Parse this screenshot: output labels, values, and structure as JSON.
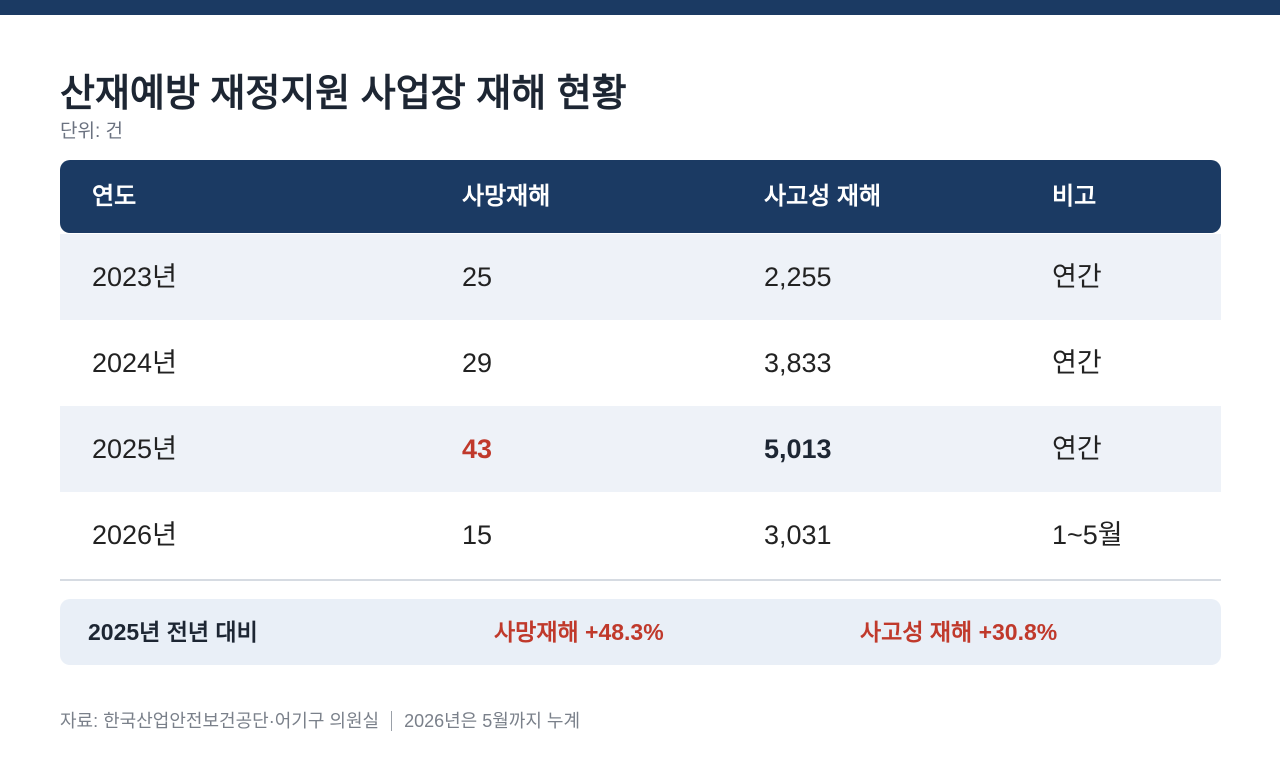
{
  "header": {
    "title": "산재예방 재정지원 사업장 재해 현황",
    "unit": "단위: 건"
  },
  "table": {
    "columns": [
      "연도",
      "사망재해",
      "사고성 재해",
      "비고"
    ],
    "rows": [
      [
        "2023년",
        "25",
        "2,255",
        "연간"
      ],
      [
        "2024년",
        "29",
        "3,833",
        "연간"
      ],
      [
        "2025년",
        "43",
        "5,013",
        "연간"
      ],
      [
        "2026년",
        "15",
        "3,031",
        "1~5월"
      ]
    ]
  },
  "summary": {
    "label": "2025년 전년 대비",
    "items": [
      "사망재해 +48.3%",
      "사고성 재해 +30.8%"
    ]
  },
  "footer": {
    "source": "자료: 한국산업안전보건공단·어기구 의원실",
    "note": "2026년은 5월까지 누계"
  }
}
